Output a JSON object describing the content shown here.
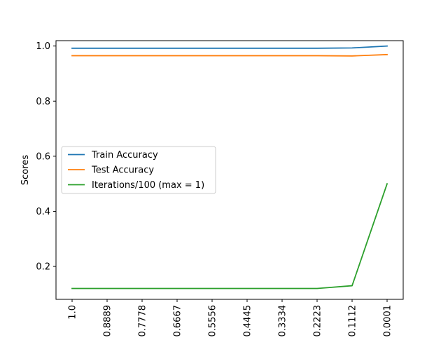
{
  "chart_data": {
    "type": "line",
    "title": "",
    "xlabel": "",
    "ylabel": "Scores",
    "categories": [
      "1.0",
      "0.8889",
      "0.7778",
      "0.6667",
      "0.5556",
      "0.4445",
      "0.3334",
      "0.2223",
      "0.1112",
      "0.0001"
    ],
    "yticks": [
      {
        "value": 0.2,
        "label": "0.2"
      },
      {
        "value": 0.4,
        "label": "0.4"
      },
      {
        "value": 0.6,
        "label": "0.6"
      },
      {
        "value": 0.8,
        "label": "0.8"
      },
      {
        "value": 1.0,
        "label": "1.0"
      }
    ],
    "ylim": [
      0.0805,
      1.0195
    ],
    "grid": false,
    "legend_position": "center-left",
    "series": [
      {
        "name": "Train Accuracy",
        "color": "#1f77b4",
        "values": [
          0.992,
          0.992,
          0.992,
          0.992,
          0.992,
          0.992,
          0.992,
          0.992,
          0.993,
          1.0
        ]
      },
      {
        "name": "Test Accuracy",
        "color": "#ff7f0e",
        "values": [
          0.965,
          0.965,
          0.965,
          0.965,
          0.965,
          0.965,
          0.965,
          0.965,
          0.964,
          0.969
        ]
      },
      {
        "name": "Iterations/100 (max = 1)",
        "color": "#2ca02c",
        "values": [
          0.12,
          0.12,
          0.12,
          0.12,
          0.12,
          0.12,
          0.12,
          0.12,
          0.13,
          0.5
        ]
      }
    ]
  }
}
